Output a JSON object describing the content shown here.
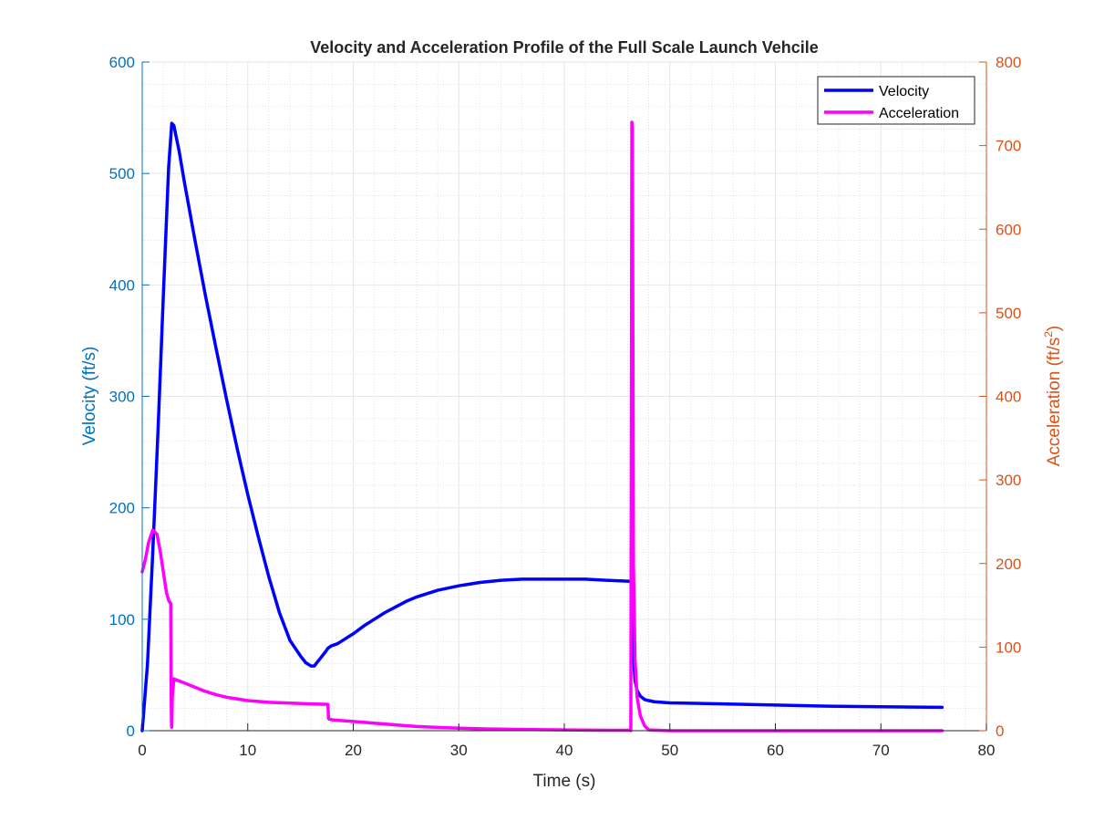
{
  "chart_data": {
    "type": "line",
    "title": "Velocity and Acceleration Profile of the Full Scale Launch Vehcile",
    "xlabel": "Time (s)",
    "ylabel_left": "Velocity (ft/s)",
    "ylabel_right_base": "Acceleration (ft/s",
    "ylabel_right_sup": "2",
    "ylabel_right_close": ")",
    "xlim": [
      0,
      80
    ],
    "ylim_left": [
      0,
      600
    ],
    "ylim_right": [
      0,
      800
    ],
    "x_ticks": [
      0,
      10,
      20,
      30,
      40,
      50,
      60,
      70,
      80
    ],
    "y_left_ticks": [
      0,
      100,
      200,
      300,
      400,
      500,
      600
    ],
    "y_right_ticks": [
      0,
      100,
      200,
      300,
      400,
      500,
      600,
      700,
      800
    ],
    "grid": true,
    "minor_grid": true,
    "legend_position": "top-right",
    "colors": {
      "velocity": "#0000ff",
      "acceleration": "#ff00ff",
      "left_axis": "#0072bd",
      "right_axis": "#d95319",
      "text": "#262626"
    },
    "series": [
      {
        "name": "Velocity",
        "axis": "left",
        "x": [
          0,
          0.5,
          1.0,
          1.5,
          2.0,
          2.5,
          2.8,
          3.0,
          3.5,
          4,
          5,
          6,
          7,
          8,
          9,
          10,
          11,
          12,
          13,
          14,
          15,
          15.5,
          16,
          16.3,
          16.8,
          17.3,
          17.6,
          17.9,
          18.5,
          19,
          20,
          21,
          22,
          23,
          24,
          25,
          26,
          28,
          30,
          32,
          34,
          36,
          38,
          40,
          42,
          44,
          46.3,
          46.4,
          46.5,
          46.6,
          46.7,
          46.9,
          47.2,
          47.6,
          48,
          48.5,
          50,
          55,
          60,
          65,
          70,
          75.8
        ],
        "values": [
          0,
          60,
          160,
          270,
          390,
          505,
          545,
          543,
          520,
          492,
          440,
          390,
          343,
          297,
          253,
          212,
          174,
          138,
          106,
          81,
          67,
          61,
          58,
          58,
          64,
          70,
          74,
          76,
          78,
          81,
          87,
          94,
          100,
          106,
          111,
          116,
          120,
          126,
          130,
          133,
          135,
          136,
          136,
          136,
          136,
          135,
          134,
          130,
          95,
          60,
          45,
          36,
          31,
          28,
          27,
          26,
          25,
          24,
          23,
          22,
          21.5,
          21
        ]
      },
      {
        "name": "Acceleration",
        "axis": "right",
        "x": [
          0,
          0.3,
          0.6,
          1.0,
          1.4,
          1.7,
          2.0,
          2.3,
          2.5,
          2.7,
          2.72,
          2.75,
          2.78,
          2.8,
          2.85,
          3.0,
          4,
          5,
          6,
          7,
          8,
          10,
          12,
          14,
          16,
          17.6,
          17.62,
          17.65,
          17.7,
          18,
          20,
          22,
          24,
          26,
          28,
          30,
          33,
          36,
          40,
          44,
          46.2,
          46.3,
          46.4,
          46.45,
          46.55,
          46.7,
          46.9,
          47.2,
          47.6,
          48,
          50,
          55,
          60,
          65,
          70,
          75.8
        ],
        "values": [
          190,
          205,
          225,
          240,
          235,
          215,
          190,
          165,
          156,
          152,
          100,
          30,
          5,
          4,
          40,
          62,
          57,
          52,
          47,
          43,
          40,
          36,
          34,
          33,
          32,
          31.5,
          25,
          15,
          14,
          13,
          11,
          9,
          7,
          5,
          4,
          3,
          2,
          1.5,
          1,
          0.5,
          0.5,
          0,
          728,
          720,
          200,
          85,
          40,
          18,
          6,
          1,
          0,
          0,
          0,
          0,
          0,
          0
        ]
      }
    ]
  }
}
